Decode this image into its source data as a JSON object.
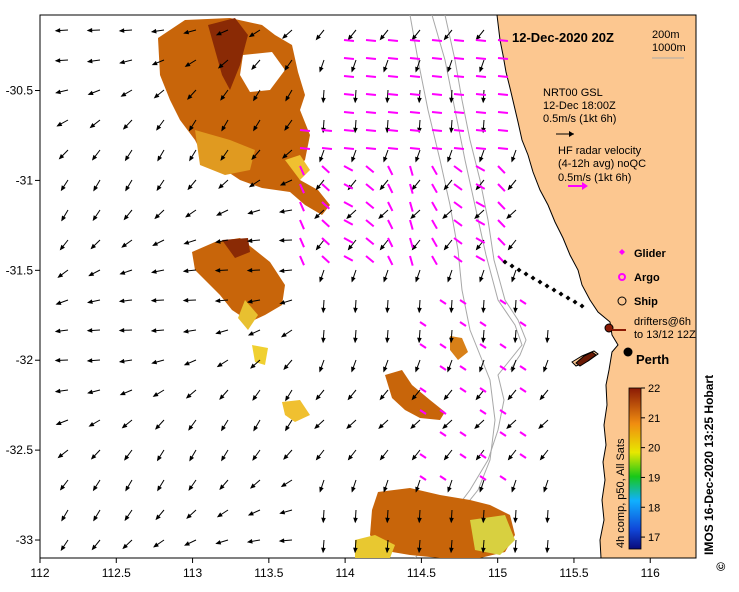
{
  "map": {
    "title": "12-Dec-2020 20Z",
    "depth_contours": [
      "200m",
      "1000m"
    ],
    "model_current": {
      "name": "NRT00 GSL",
      "time": "12-Dec 18:00Z",
      "scale": "0.5m/s (1kt 6h)"
    },
    "radar_current": {
      "line1": "HF radar velocity",
      "line2": "(4-12h avg) noQC",
      "scale": "0.5m/s (1kt 6h)"
    },
    "legend": {
      "glider": "Glider",
      "argo": "Argo",
      "ship": "Ship",
      "drifters_line1": "drifters@6h",
      "drifters_line2": "to 13/12 12Z"
    },
    "city": "Perth",
    "colorbar": {
      "label": "4h comp, p50, All Sats",
      "ticks": [
        "22",
        "21",
        "20",
        "19",
        "18",
        "17"
      ],
      "min": 16.6,
      "max": 22
    },
    "credit": "IMOS 16-Dec-2020 13:25 Hobart",
    "copyright_symbol": "©",
    "x_ticks": [
      "112",
      "112.5",
      "113",
      "113.5",
      "114",
      "114.5",
      "115",
      "115.5",
      "116"
    ],
    "y_ticks": [
      "-30.5",
      "-31",
      "-31.5",
      "-32",
      "-32.5",
      "-33"
    ],
    "x_range": [
      112,
      116.3
    ],
    "y_range": [
      -30.08,
      -33.1
    ],
    "colors": {
      "land": "#fcc790",
      "model_arrow": "#000000",
      "radar_arrow": "#ff00ff",
      "contour": "#a8a8a8",
      "coast": "#000000"
    }
  }
}
